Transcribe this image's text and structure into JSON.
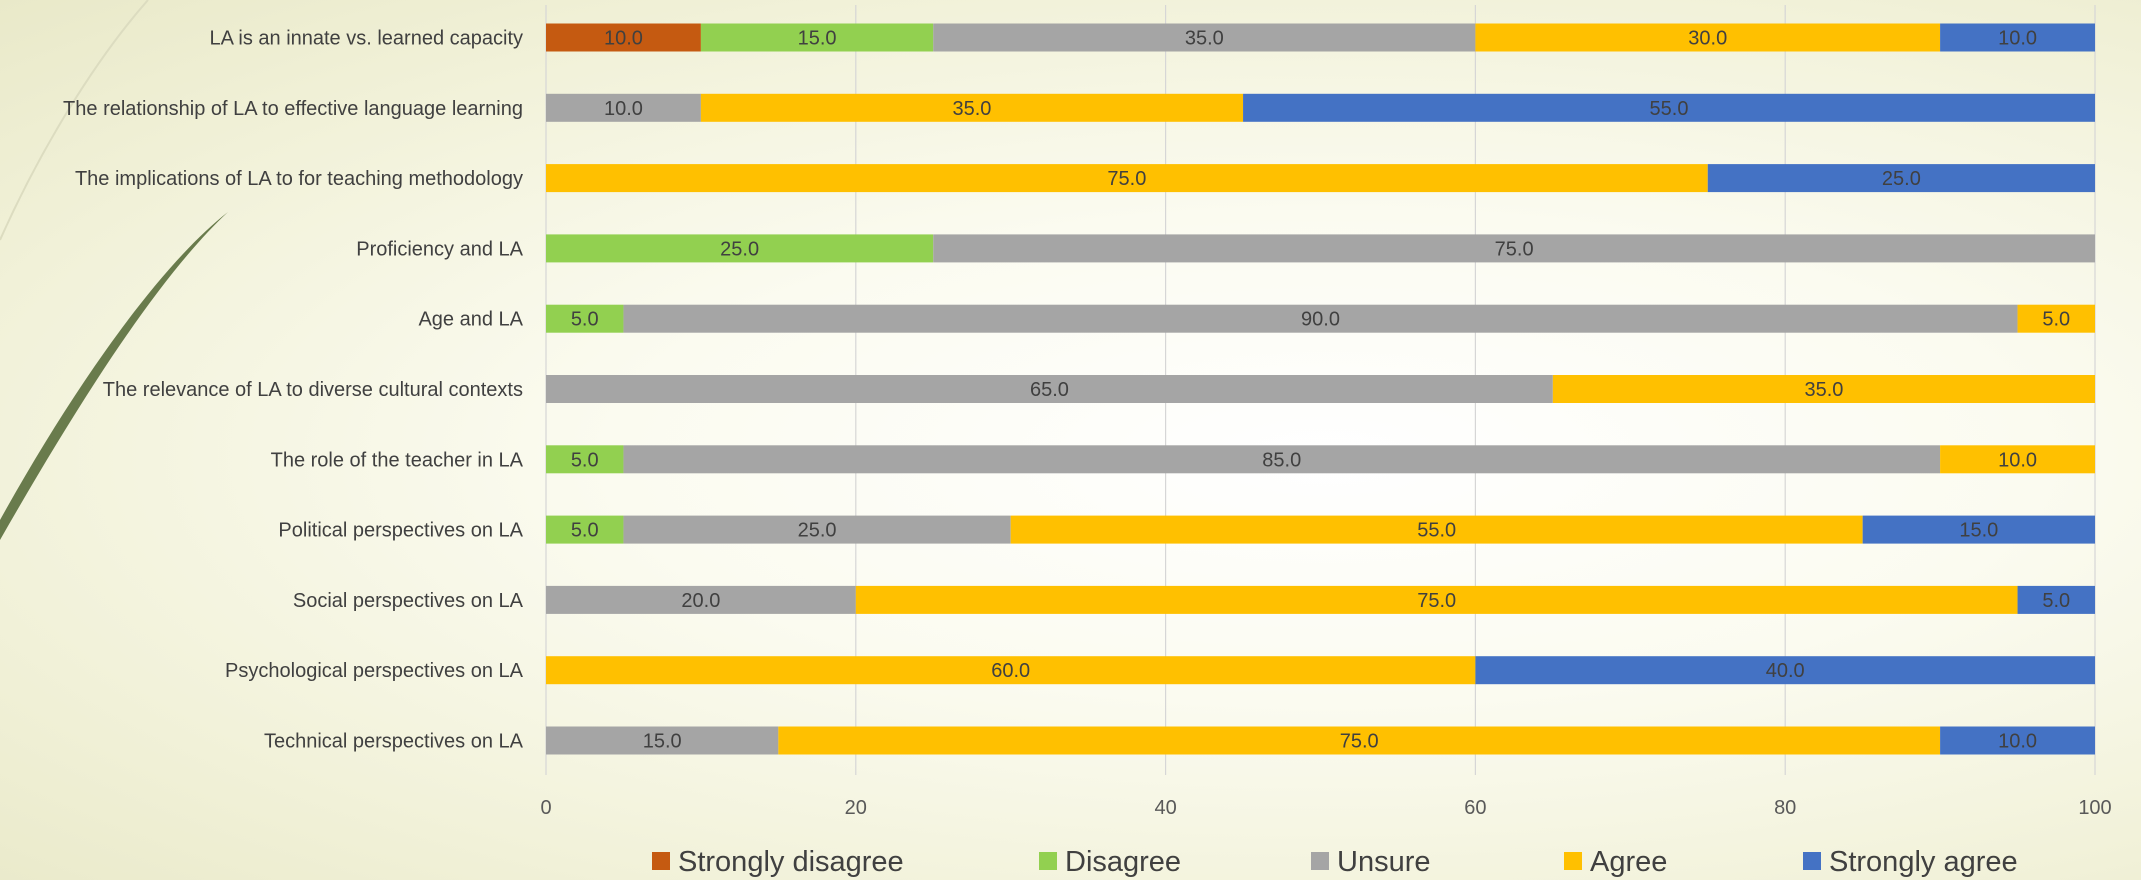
{
  "chart_data": {
    "type": "bar",
    "orientation": "horizontal",
    "stacked": true,
    "categories": [
      "LA  is an innate vs. learned capacity",
      "The relationship of LA to effective language learning",
      "The implications of LA to for teaching methodology",
      "Proficiency and LA",
      "Age and LA",
      "The relevance of LA to diverse cultural contexts",
      "The role of the teacher in LA",
      "Political perspectives on LA",
      "Social perspectives on LA",
      "Psychological perspectives on LA",
      "Technical perspectives on LA"
    ],
    "series": [
      {
        "name": "Strongly disagree",
        "color": "#C55A11",
        "values": [
          10,
          0,
          0,
          0,
          0,
          0,
          0,
          0,
          0,
          0,
          0
        ]
      },
      {
        "name": "Disagree",
        "color": "#92D050",
        "values": [
          15,
          0,
          0,
          25,
          5,
          0,
          5,
          5,
          0,
          0,
          0
        ]
      },
      {
        "name": "Unsure",
        "color": "#A5A5A5",
        "values": [
          35,
          10,
          0,
          75,
          90,
          65,
          85,
          25,
          20,
          0,
          15
        ]
      },
      {
        "name": "Agree",
        "color": "#FFC000",
        "values": [
          30,
          35,
          75,
          0,
          5,
          35,
          10,
          55,
          75,
          60,
          75
        ]
      },
      {
        "name": "Strongly agree",
        "color": "#4472C4",
        "values": [
          10,
          55,
          25,
          0,
          0,
          0,
          0,
          15,
          5,
          40,
          10
        ]
      }
    ],
    "xlim": [
      0,
      100
    ],
    "xticks": [
      "0",
      "20",
      "40",
      "60",
      "80",
      "100"
    ],
    "grid": true,
    "legend": "bottom",
    "data_labels": true
  }
}
